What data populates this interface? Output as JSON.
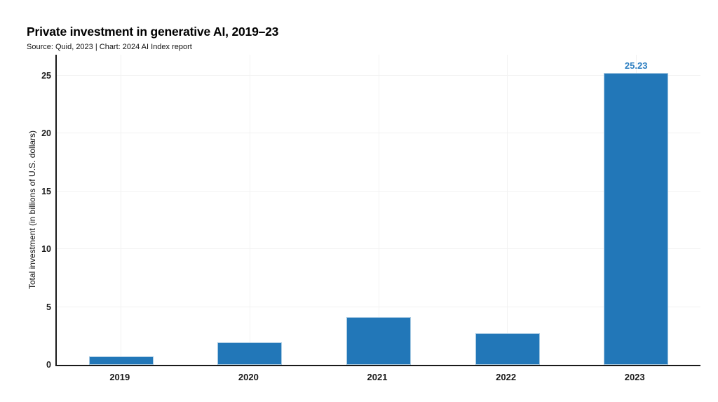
{
  "header": {
    "title": "Private investment in generative AI, 2019–23",
    "subtitle": "Source: Quid, 2023 | Chart: 2024 AI Index report"
  },
  "chart_data": {
    "type": "bar",
    "title": "Private investment in generative AI, 2019–23",
    "subtitle": "Source: Quid, 2023 | Chart: 2024 AI Index report",
    "xlabel": "",
    "ylabel": "Total investment (in billions of U.S. dollars)",
    "categories": [
      "2019",
      "2020",
      "2021",
      "2022",
      "2023"
    ],
    "values": [
      0.7,
      1.95,
      4.1,
      2.7,
      25.23
    ],
    "value_labels": [
      "",
      "",
      "",
      "",
      "25.23"
    ],
    "yticks": [
      0,
      5,
      10,
      15,
      20,
      25
    ],
    "ylim": [
      0,
      26.8
    ],
    "grid": true,
    "legend": "none",
    "colors": {
      "bar_fill": "#2277B8",
      "bar_edge": "#A6C9E2",
      "value_label": "#2E7FC1",
      "axis": "#1a1a1a",
      "gridline": "#F2F2F2",
      "text": "#111111"
    }
  }
}
